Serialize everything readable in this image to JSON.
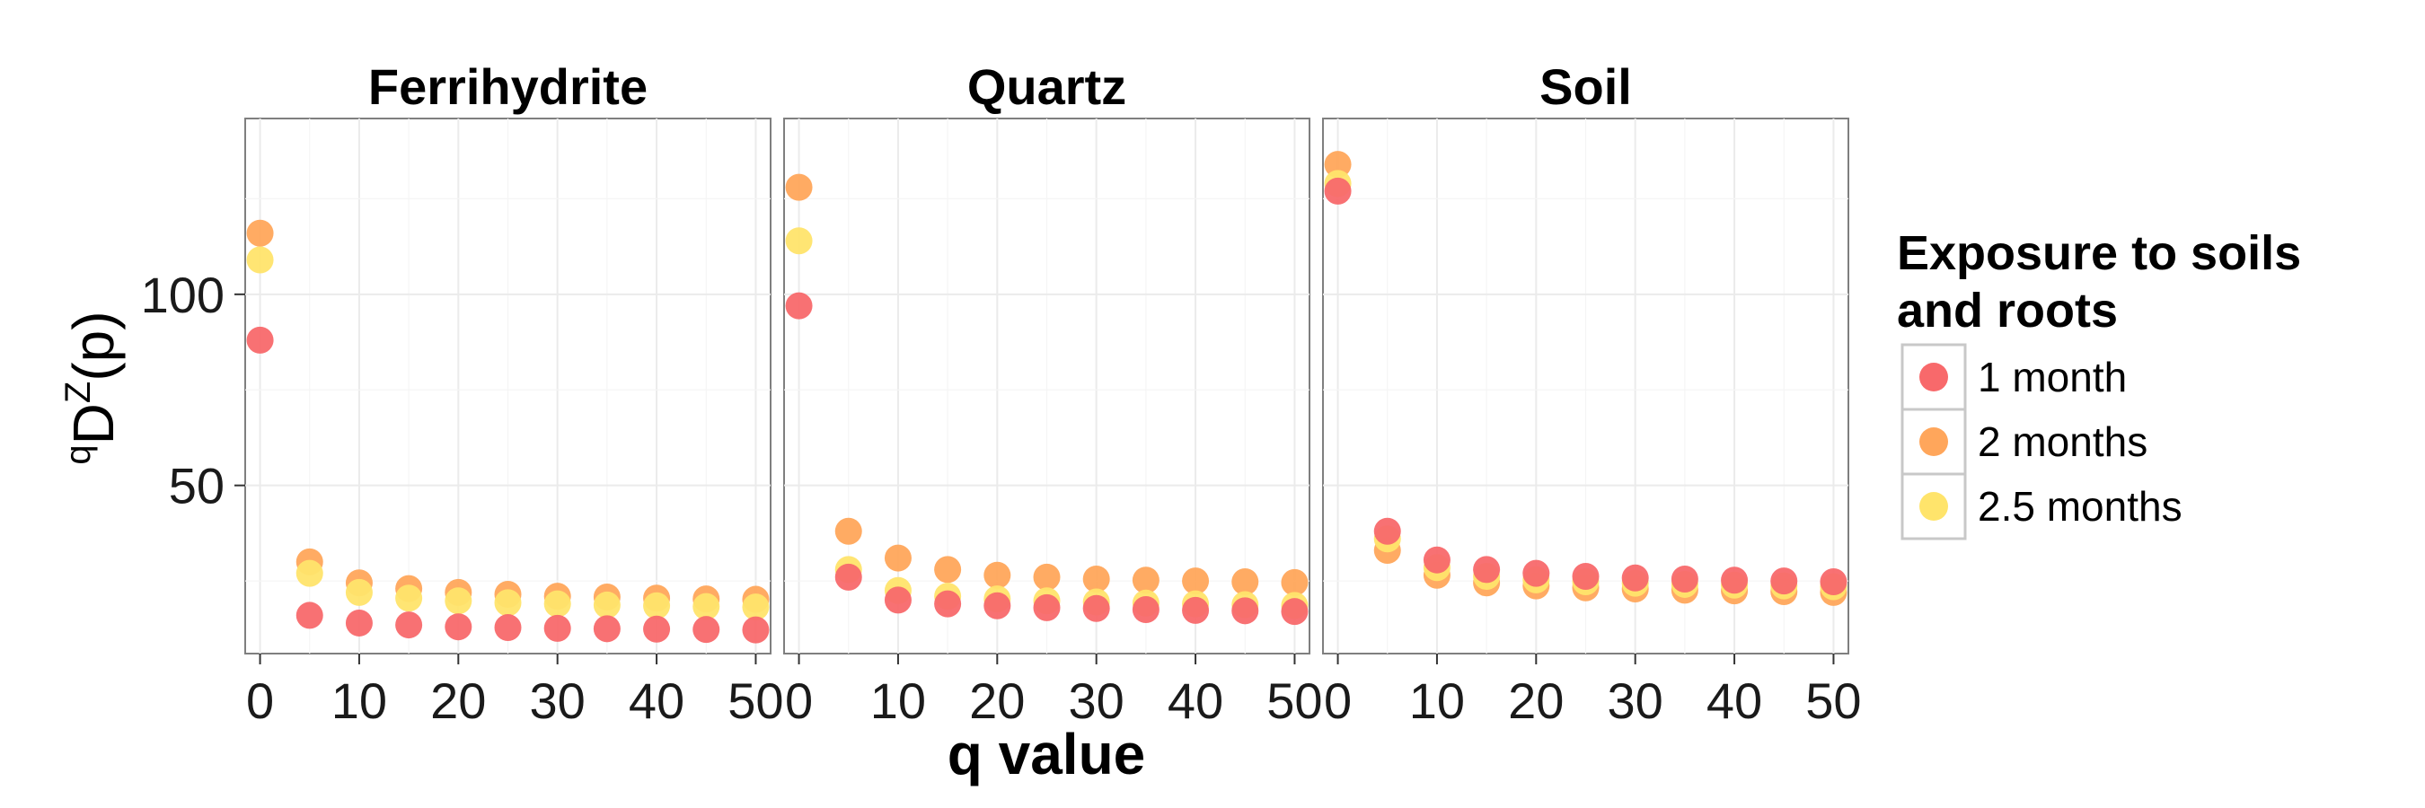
{
  "chart_data": {
    "type": "scatter",
    "xlabel": "q value",
    "ylabel": "qDZ(p)",
    "ylabel_parts": {
      "pre": "q",
      "main": "D",
      "sup": "Z",
      "post": "(p)"
    },
    "xlim": [
      -1.5,
      51.5
    ],
    "ylim": [
      6,
      146
    ],
    "xticks": [
      0,
      10,
      20,
      30,
      40,
      50
    ],
    "yticks": [
      50,
      100
    ],
    "grid": true,
    "legend": {
      "title_lines": [
        "Exposure to soils",
        "and roots"
      ],
      "placement": "right"
    },
    "series": [
      {
        "name": "1 month",
        "color": "#F8696B"
      },
      {
        "name": "2 months",
        "color": "#FFA65B"
      },
      {
        "name": "2.5 months",
        "color": "#FFE46B"
      }
    ],
    "x": [
      0,
      5,
      10,
      15,
      20,
      25,
      30,
      35,
      40,
      45,
      50
    ],
    "panels": [
      {
        "title": "Ferrihydrite",
        "values": [
          [
            88,
            16,
            14,
            13.5,
            13,
            12.8,
            12.6,
            12.5,
            12.4,
            12.3,
            12.2
          ],
          [
            116,
            30,
            24.5,
            23,
            22,
            21.5,
            21,
            20.8,
            20.5,
            20.3,
            20.2
          ],
          [
            109,
            27,
            22,
            20.5,
            19.8,
            19.3,
            19,
            18.7,
            18.5,
            18.3,
            18.2
          ]
        ]
      },
      {
        "title": "Quartz",
        "values": [
          [
            97,
            26,
            20,
            19,
            18.5,
            18,
            17.8,
            17.5,
            17.3,
            17.2,
            17
          ],
          [
            128,
            38,
            31,
            28,
            26.5,
            26,
            25.5,
            25.2,
            25,
            24.8,
            24.6
          ],
          [
            114,
            28,
            22.5,
            21,
            20.3,
            19.8,
            19.5,
            19.2,
            19,
            18.8,
            18.6
          ]
        ]
      },
      {
        "title": "Soil",
        "values": [
          [
            127,
            38,
            30.5,
            28,
            27,
            26.2,
            25.8,
            25.5,
            25.2,
            25,
            24.8
          ],
          [
            134,
            33,
            26.5,
            24.5,
            23.7,
            23.2,
            22.9,
            22.6,
            22.4,
            22.2,
            22
          ],
          [
            129,
            36,
            28.5,
            26.2,
            25.3,
            24.8,
            24.4,
            24.1,
            23.9,
            23.7,
            23.5
          ]
        ]
      }
    ]
  }
}
